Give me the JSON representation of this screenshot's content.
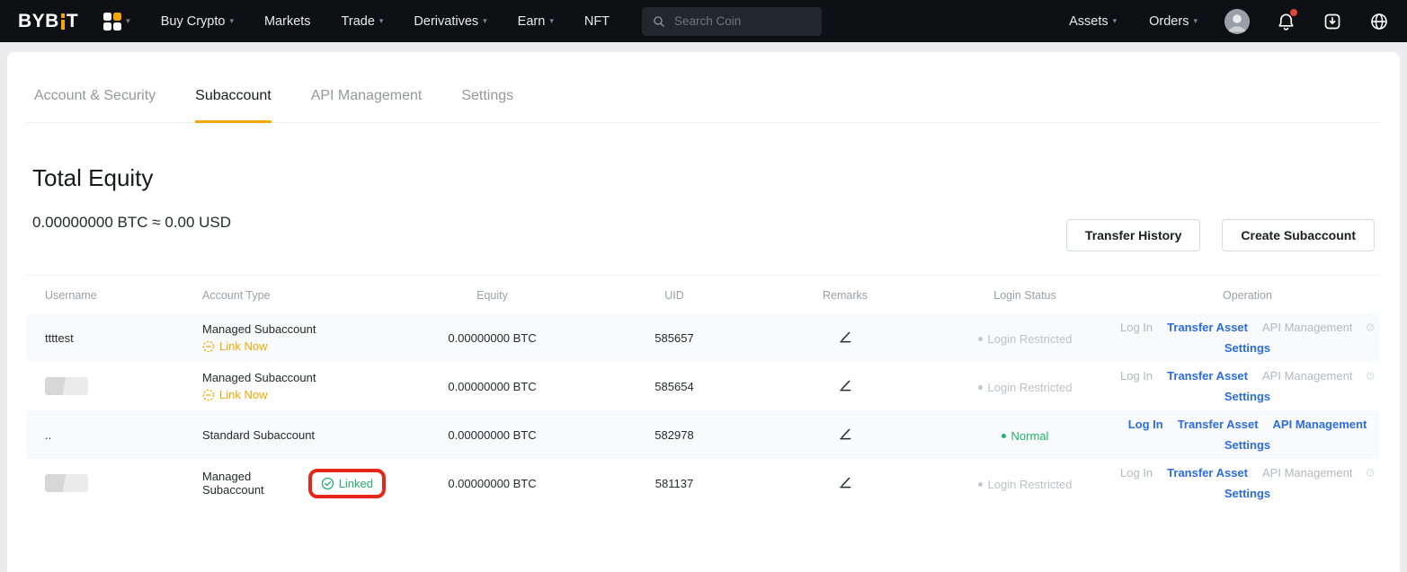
{
  "topbar": {
    "logo": {
      "prefix": "BYB",
      "suffix": "T"
    },
    "nav": [
      {
        "label": "Buy Crypto",
        "caret": true
      },
      {
        "label": "Markets",
        "caret": false
      },
      {
        "label": "Trade",
        "caret": true
      },
      {
        "label": "Derivatives",
        "caret": true
      },
      {
        "label": "Earn",
        "caret": true
      },
      {
        "label": "NFT",
        "caret": false
      }
    ],
    "search": {
      "placeholder": "Search Coin",
      "icon": "magnifier-icon"
    },
    "right_nav": [
      {
        "label": "Assets",
        "caret": true
      },
      {
        "label": "Orders",
        "caret": true
      }
    ],
    "right_icons": [
      "avatar",
      "notification-bell-icon",
      "download-icon",
      "globe-language-icon"
    ],
    "notification_dot": true
  },
  "tabs": [
    {
      "label": "Account & Security",
      "active": false
    },
    {
      "label": "Subaccount",
      "active": true
    },
    {
      "label": "API Management",
      "active": false
    },
    {
      "label": "Settings",
      "active": false
    }
  ],
  "summary": {
    "title": "Total Equity",
    "equity": "0.00000000 BTC ≈ 0.00 USD"
  },
  "actions": {
    "transfer_history": "Transfer History",
    "create_subaccount": "Create Subaccount"
  },
  "table": {
    "columns": [
      "Username",
      "Account Type",
      "Equity",
      "UID",
      "Remarks",
      "Login Status",
      "Operation"
    ],
    "rows": [
      {
        "username": "ttttest",
        "redacted": false,
        "account_type": "Managed Subaccount",
        "account_action": {
          "kind": "link-now",
          "label": "Link Now"
        },
        "annotated": false,
        "equity": "0.00000000 BTC",
        "uid": "585657",
        "remarks_icon": "edit-pencil-icon",
        "login_status": {
          "label": "Login Restricted",
          "state": "restricted"
        },
        "operations_line1": [
          {
            "label": "Log In",
            "enabled": false,
            "help": false
          },
          {
            "label": "Transfer Asset",
            "enabled": true,
            "help": false
          },
          {
            "label": "API Management",
            "enabled": false,
            "help": true
          }
        ],
        "operations_line2": [
          {
            "label": "Settings",
            "enabled": true
          }
        ]
      },
      {
        "username": "",
        "redacted": true,
        "account_type": "Managed Subaccount",
        "account_action": {
          "kind": "link-now",
          "label": "Link Now"
        },
        "annotated": false,
        "equity": "0.00000000 BTC",
        "uid": "585654",
        "remarks_icon": "edit-pencil-icon",
        "login_status": {
          "label": "Login Restricted",
          "state": "restricted"
        },
        "operations_line1": [
          {
            "label": "Log In",
            "enabled": false,
            "help": false
          },
          {
            "label": "Transfer Asset",
            "enabled": true,
            "help": false
          },
          {
            "label": "API Management",
            "enabled": false,
            "help": true
          }
        ],
        "operations_line2": [
          {
            "label": "Settings",
            "enabled": true
          }
        ]
      },
      {
        "username": "..",
        "redacted": false,
        "account_type": "Standard Subaccount",
        "account_action": null,
        "annotated": false,
        "equity": "0.00000000 BTC",
        "uid": "582978",
        "remarks_icon": "edit-pencil-icon",
        "login_status": {
          "label": "Normal",
          "state": "normal"
        },
        "operations_line1": [
          {
            "label": "Log In",
            "enabled": true,
            "help": false
          },
          {
            "label": "Transfer Asset",
            "enabled": true,
            "help": false
          },
          {
            "label": "API Management",
            "enabled": true,
            "help": false
          }
        ],
        "operations_line2": [
          {
            "label": "Settings",
            "enabled": true
          }
        ]
      },
      {
        "username": "",
        "redacted": true,
        "account_type": "Managed Subaccount",
        "account_action": {
          "kind": "linked",
          "label": "Linked"
        },
        "annotated": true,
        "equity": "0.00000000 BTC",
        "uid": "581137",
        "remarks_icon": "edit-pencil-icon",
        "login_status": {
          "label": "Login Restricted",
          "state": "restricted"
        },
        "operations_line1": [
          {
            "label": "Log In",
            "enabled": false,
            "help": false
          },
          {
            "label": "Transfer Asset",
            "enabled": true,
            "help": false
          },
          {
            "label": "API Management",
            "enabled": false,
            "help": true
          }
        ],
        "operations_line2": [
          {
            "label": "Settings",
            "enabled": true
          }
        ]
      }
    ]
  },
  "colors": {
    "brand_orange": "#f7a600",
    "link_blue": "#2b6ce5",
    "success_green": "#21b26c",
    "annotation_red": "#e52717",
    "disabled_gray": "#b3b9c1",
    "topbar_bg": "#0e1014",
    "row_shade": "#f9fafb"
  }
}
